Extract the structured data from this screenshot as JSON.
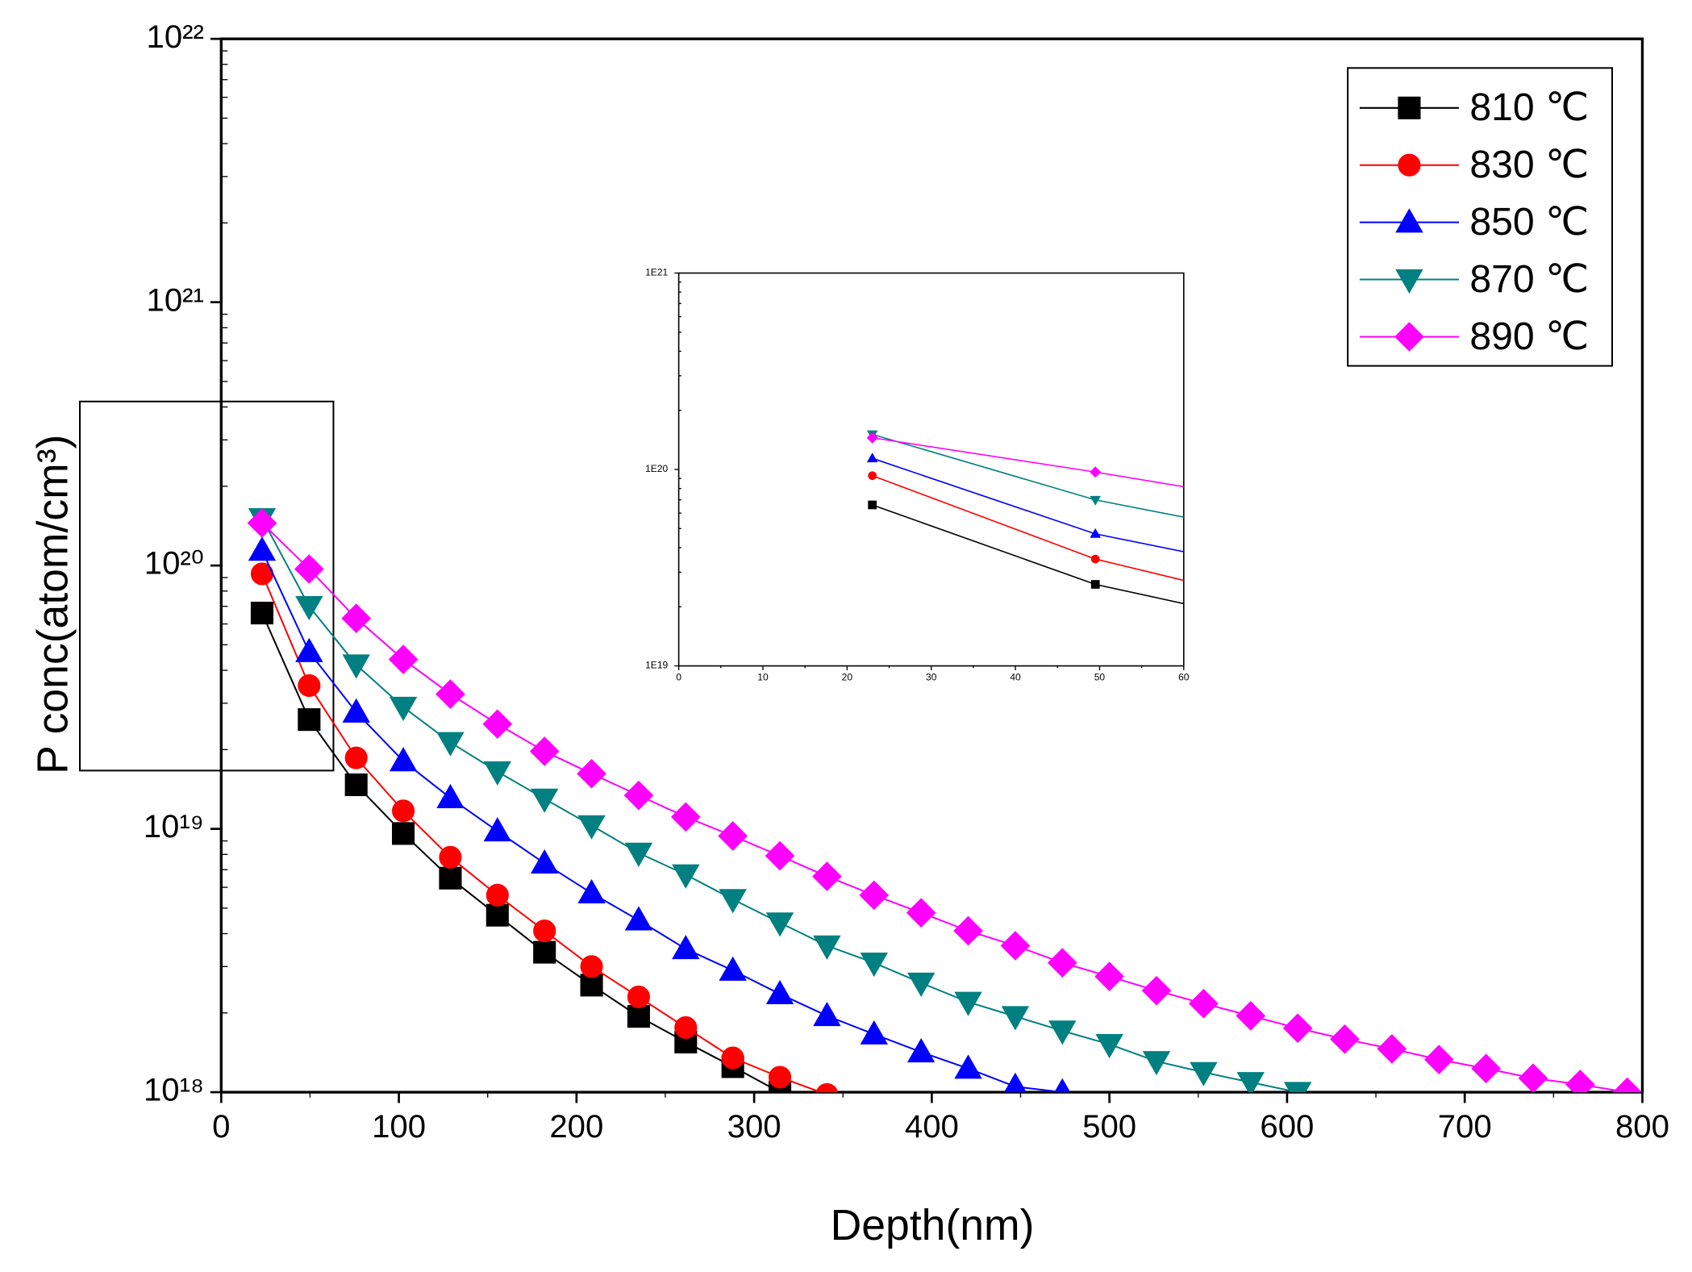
{
  "chart_data": {
    "type": "line",
    "log_y": true,
    "xlabel": "Depth(nm)",
    "ylabel": "P conc(atom/cm³)",
    "xlim": [
      0,
      800
    ],
    "xticks": [
      0,
      100,
      200,
      300,
      400,
      500,
      600,
      700,
      800
    ],
    "ylim": [
      1e+18,
      1e+22
    ],
    "yticks": [
      {
        "value": 1e+18,
        "label": "10¹⁸"
      },
      {
        "value": 1e+19,
        "label": "10¹⁹"
      },
      {
        "value": 1e+20,
        "label": "10²⁰"
      },
      {
        "value": 1e+21,
        "label": "10²¹"
      },
      {
        "value": 1e+22,
        "label": "10²²"
      }
    ],
    "legend": "upper right",
    "x": [
      23,
      49.5,
      76,
      102.5,
      129,
      155.5,
      182,
      208.5,
      235,
      261.5,
      288,
      314.5,
      341,
      367.5,
      394,
      420.5,
      447,
      473.5,
      500,
      526.5,
      553,
      579.5,
      606,
      632.5,
      659,
      685.5,
      712,
      738.5,
      765,
      791.5
    ],
    "series": [
      {
        "name": "810 ℃",
        "color": "#000000",
        "marker": "square",
        "values": [
          6.6e+19,
          2.6e+19,
          1.47e+19,
          9.6e+18,
          6.5e+18,
          4.7e+18,
          3.4e+18,
          2.55e+18,
          1.94e+18,
          1.55e+18,
          1.25e+18,
          1e+18,
          null,
          null,
          null,
          null,
          null,
          null,
          null,
          null,
          null,
          null,
          null,
          null,
          null,
          null,
          null,
          null,
          null,
          null
        ]
      },
      {
        "name": "830 ℃",
        "color": "#ff0000",
        "marker": "circle",
        "values": [
          9.3e+19,
          3.5e+19,
          1.86e+19,
          1.17e+19,
          7.8e+18,
          5.6e+18,
          4.1e+18,
          3e+18,
          2.3e+18,
          1.76e+18,
          1.35e+18,
          1.14e+18,
          9.8e+17,
          null,
          null,
          null,
          null,
          null,
          null,
          null,
          null,
          null,
          null,
          null,
          null,
          null,
          null,
          null,
          null,
          null
        ]
      },
      {
        "name": "850 ℃",
        "color": "#0000ff",
        "marker": "triangle-up",
        "values": [
          1.14e+20,
          4.7e+19,
          2.77e+19,
          1.81e+19,
          1.31e+19,
          9.8e+18,
          7.4e+18,
          5.7e+18,
          4.5e+18,
          3.5e+18,
          2.9e+18,
          2.36e+18,
          1.95e+18,
          1.66e+18,
          1.42e+18,
          1.23e+18,
          1.05e+18,
          1e+18,
          null,
          null,
          null,
          null,
          null,
          null,
          null,
          null,
          null,
          null,
          null,
          null
        ]
      },
      {
        "name": "870 ℃",
        "color": "#008080",
        "marker": "triangle-down",
        "values": [
          1.51e+20,
          7e+19,
          4.2e+19,
          2.9e+19,
          2.13e+19,
          1.65e+19,
          1.3e+19,
          1.03e+19,
          8.1e+18,
          6.7e+18,
          5.4e+18,
          4.4e+18,
          3.6e+18,
          3.1e+18,
          2.6e+18,
          2.2e+18,
          1.94e+18,
          1.71e+18,
          1.52e+18,
          1.31e+18,
          1.19e+18,
          1.09e+18,
          1e+18,
          null,
          null,
          null,
          null,
          null,
          null,
          null
        ]
      },
      {
        "name": "890 ℃",
        "color": "#ff00ff",
        "marker": "diamond",
        "values": [
          1.45e+20,
          9.7e+19,
          6.3e+19,
          4.4e+19,
          3.25e+19,
          2.5e+19,
          1.97e+19,
          1.62e+19,
          1.34e+19,
          1.11e+19,
          9.4e+18,
          7.9e+18,
          6.6e+18,
          5.6e+18,
          4.8e+18,
          4.1e+18,
          3.6e+18,
          3.1e+18,
          2.75e+18,
          2.43e+18,
          2.17e+18,
          1.95e+18,
          1.75e+18,
          1.59e+18,
          1.46e+18,
          1.33e+18,
          1.23e+18,
          1.13e+18,
          1.07e+18,
          1e+18
        ]
      }
    ],
    "inset": {
      "xlim": [
        0,
        60
      ],
      "xticks": [
        0,
        10,
        20,
        30,
        40,
        50,
        60
      ],
      "ylim": [
        1e+19,
        1e+21
      ],
      "yticks": [
        {
          "value": 1e+19,
          "label": "1E19"
        },
        {
          "value": 1e+20,
          "label": "1E20"
        },
        {
          "value": 1e+21,
          "label": "1E21"
        }
      ]
    }
  }
}
